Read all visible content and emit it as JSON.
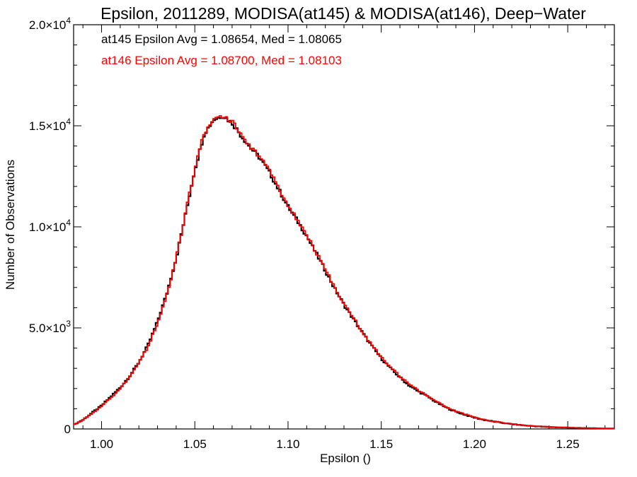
{
  "chart_data": {
    "type": "line",
    "title": "Epsilon, 2011289, MODISA(at145) & MODISA(at146), Deep−Water",
    "xlabel": "Epsilon ()",
    "ylabel": "Number of Observations",
    "xlim": [
      0.985,
      1.275
    ],
    "ylim": [
      0,
      20000
    ],
    "grid": false,
    "x_ticks": [
      {
        "value": 1.0,
        "label": "1.00"
      },
      {
        "value": 1.05,
        "label": "1.05"
      },
      {
        "value": 1.1,
        "label": "1.10"
      },
      {
        "value": 1.15,
        "label": "1.15"
      },
      {
        "value": 1.2,
        "label": "1.20"
      },
      {
        "value": 1.25,
        "label": "1.25"
      }
    ],
    "y_ticks": [
      {
        "value": 0,
        "mantissa": "0",
        "exp": ""
      },
      {
        "value": 5000,
        "mantissa": "5.0×10",
        "exp": "3"
      },
      {
        "value": 10000,
        "mantissa": "1.0×10",
        "exp": "4"
      },
      {
        "value": 15000,
        "mantissa": "1.5×10",
        "exp": "4"
      },
      {
        "value": 20000,
        "mantissa": "2.0×10",
        "exp": "4"
      }
    ],
    "x": [
      0.985,
      0.99,
      0.995,
      1.0,
      1.005,
      1.01,
      1.015,
      1.02,
      1.025,
      1.03,
      1.035,
      1.04,
      1.045,
      1.05,
      1.055,
      1.06,
      1.065,
      1.07,
      1.075,
      1.08,
      1.085,
      1.09,
      1.095,
      1.1,
      1.105,
      1.11,
      1.115,
      1.12,
      1.125,
      1.13,
      1.135,
      1.14,
      1.145,
      1.15,
      1.155,
      1.16,
      1.165,
      1.17,
      1.175,
      1.18,
      1.185,
      1.19,
      1.195,
      1.2,
      1.205,
      1.21,
      1.215,
      1.22,
      1.225,
      1.23,
      1.235,
      1.24,
      1.245,
      1.25,
      1.255,
      1.26,
      1.265,
      1.27,
      1.275
    ],
    "series": [
      {
        "name": "at145",
        "color": "#000000",
        "values": [
          200,
          450,
          800,
          1150,
          1600,
          2050,
          2600,
          3300,
          4150,
          5300,
          6700,
          8450,
          10600,
          12850,
          14600,
          15300,
          15500,
          15150,
          14500,
          13900,
          13400,
          12700,
          11850,
          11000,
          10300,
          9550,
          8700,
          7850,
          6950,
          6150,
          5450,
          4750,
          4100,
          3500,
          3000,
          2550,
          2150,
          1850,
          1600,
          1300,
          1050,
          850,
          700,
          560,
          450,
          370,
          300,
          240,
          190,
          150,
          120,
          95,
          80,
          65,
          50,
          40,
          30,
          25,
          20
        ]
      },
      {
        "name": "at146",
        "color": "#ff0000",
        "values": [
          200,
          440,
          790,
          1120,
          1560,
          2000,
          2560,
          3250,
          4100,
          5250,
          6650,
          8450,
          10650,
          12900,
          14650,
          15350,
          15500,
          15200,
          14550,
          13950,
          13450,
          12750,
          11900,
          11050,
          10350,
          9600,
          8750,
          7900,
          7000,
          6200,
          5500,
          4800,
          4150,
          3550,
          3050,
          2600,
          2200,
          1900,
          1650,
          1330,
          1080,
          880,
          720,
          580,
          460,
          380,
          310,
          245,
          195,
          155,
          125,
          98,
          82,
          66,
          52,
          42,
          32,
          26,
          20
        ]
      }
    ],
    "annotations": [
      {
        "text": "at145 Epsilon Avg = 1.08654, Med = 1.08065",
        "color": "#000000"
      },
      {
        "text": "at146 Epsilon Avg = 1.08700, Med = 1.08103",
        "color": "#ff0000"
      }
    ]
  }
}
